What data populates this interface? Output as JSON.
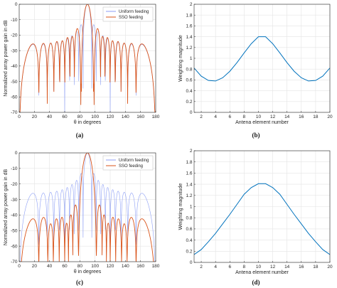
{
  "colors": {
    "uniform": "#8c9ef5",
    "sso": "#d95319",
    "weights": "#0072bd",
    "grid": "#e4e4e4",
    "axis": "#262626"
  },
  "chart_data": [
    {
      "panel_label": "(a)",
      "type": "line",
      "xlabel": "θ in degrees",
      "ylabel": "Normalized array power gain in dB",
      "xlim": [
        0,
        180
      ],
      "ylim": [
        -70,
        0
      ],
      "xticks": [
        0,
        20,
        40,
        60,
        80,
        100,
        120,
        140,
        160,
        180
      ],
      "yticks": [
        0,
        -10,
        -20,
        -30,
        -40,
        -50,
        -60,
        -70
      ],
      "grid": true,
      "legend_position": "top-right",
      "pattern": {
        "elements": 20,
        "spacing_wavelengths": 0.5
      },
      "series": [
        {
          "name": "Uniform feeding",
          "color_key": "uniform",
          "weights_ref": "uniform",
          "floor_db": -70
        },
        {
          "name": "SSO feeding",
          "color_key": "sso",
          "weights_ref": "b",
          "floor_db": -70
        }
      ]
    },
    {
      "panel_label": "(b)",
      "type": "line",
      "xlabel": "Antena element number",
      "ylabel": "Weighting magnitude",
      "xlim": [
        1,
        20
      ],
      "ylim": [
        0,
        2
      ],
      "xticks": [
        2,
        4,
        6,
        8,
        10,
        12,
        14,
        16,
        18,
        20
      ],
      "yticks": [
        0,
        0.2,
        0.4,
        0.6,
        0.8,
        1,
        1.2,
        1.4,
        1.6,
        1.8,
        2
      ],
      "ytick_labels": [
        "0",
        "0.2",
        "0.4",
        "0.6",
        "0.8",
        "1",
        "1.2",
        "1.4",
        "1.6",
        "1.8",
        "2"
      ],
      "grid": true,
      "x": [
        1,
        2,
        3,
        4,
        5,
        6,
        7,
        8,
        9,
        10,
        11,
        12,
        13,
        14,
        15,
        16,
        17,
        18,
        19,
        20
      ],
      "values": [
        0.82,
        0.67,
        0.59,
        0.58,
        0.64,
        0.76,
        0.92,
        1.1,
        1.27,
        1.4,
        1.4,
        1.27,
        1.1,
        0.92,
        0.76,
        0.64,
        0.58,
        0.59,
        0.67,
        0.82
      ]
    },
    {
      "panel_label": "(c)",
      "type": "line",
      "xlabel": "θ in degrees",
      "ylabel": "Normalized array power gain in dB",
      "xlim": [
        0,
        180
      ],
      "ylim": [
        -70,
        0
      ],
      "xticks": [
        0,
        20,
        40,
        60,
        80,
        100,
        120,
        140,
        160,
        180
      ],
      "yticks": [
        0,
        -10,
        -20,
        -30,
        -40,
        -50,
        -60,
        -70
      ],
      "grid": true,
      "legend_position": "top-right",
      "pattern": {
        "elements": 20,
        "spacing_wavelengths": 0.5
      },
      "series": [
        {
          "name": "Uniform feeding",
          "color_key": "uniform",
          "weights_ref": "uniform",
          "floor_db": -70
        },
        {
          "name": "SSO feeding",
          "color_key": "sso",
          "weights_ref": "d",
          "floor_db": -70
        }
      ]
    },
    {
      "panel_label": "(d)",
      "type": "line",
      "xlabel": "Antena element number",
      "ylabel": "Weighting magnitude",
      "xlim": [
        1,
        20
      ],
      "ylim": [
        0,
        2
      ],
      "xticks": [
        2,
        4,
        6,
        8,
        10,
        12,
        14,
        16,
        18,
        20
      ],
      "yticks": [
        0,
        0.2,
        0.4,
        0.6,
        0.8,
        1,
        1.2,
        1.4,
        1.6,
        1.8,
        2
      ],
      "ytick_labels": [
        "0",
        "0.2",
        "0.4",
        "0.6",
        "0.8",
        "1",
        "1.2",
        "1.4",
        "1.6",
        "1.8",
        "2"
      ],
      "grid": true,
      "x": [
        1,
        2,
        3,
        4,
        5,
        6,
        7,
        8,
        9,
        10,
        11,
        12,
        13,
        14,
        15,
        16,
        17,
        18,
        19,
        20
      ],
      "values": [
        0.14,
        0.23,
        0.37,
        0.52,
        0.69,
        0.86,
        1.04,
        1.22,
        1.34,
        1.41,
        1.41,
        1.34,
        1.22,
        1.04,
        0.86,
        0.69,
        0.52,
        0.37,
        0.23,
        0.14
      ]
    }
  ]
}
